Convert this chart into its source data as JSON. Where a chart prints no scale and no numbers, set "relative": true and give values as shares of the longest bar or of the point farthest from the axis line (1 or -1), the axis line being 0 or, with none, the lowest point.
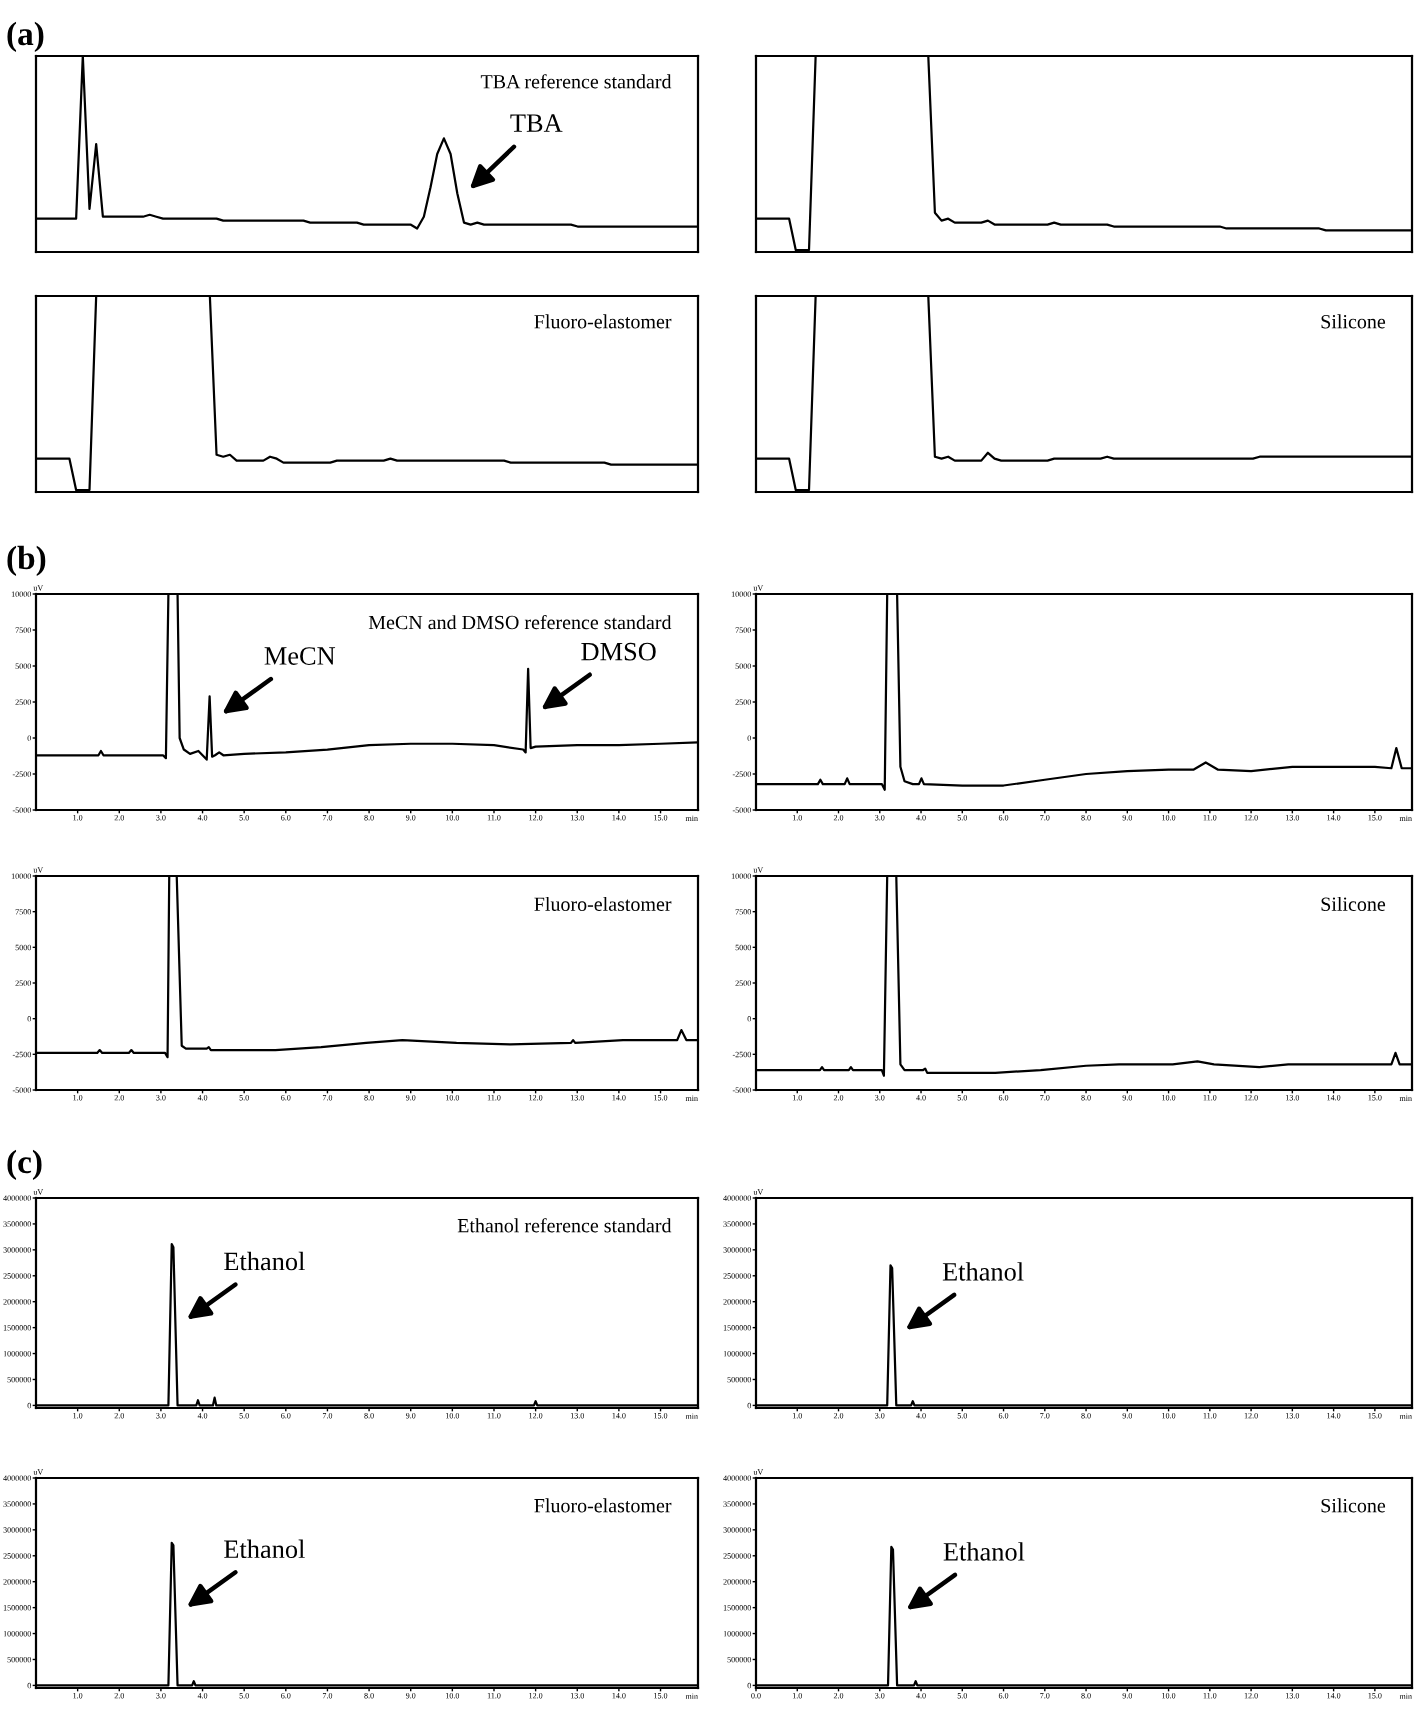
{
  "chart_data": [
    {
      "type": "line",
      "title": "(a)",
      "subtitle": "TBA reference standard",
      "relative": true,
      "categories": [
        null,
        null,
        null,
        null,
        null,
        null,
        null,
        null,
        null,
        null,
        null,
        null,
        null,
        null,
        null,
        null,
        null,
        null,
        null,
        null,
        null,
        null,
        null,
        null,
        null,
        null,
        null,
        null,
        null,
        null,
        null,
        null,
        null,
        null,
        null,
        null,
        null,
        null,
        null,
        null,
        null,
        null,
        null,
        null,
        null,
        null,
        null,
        null,
        null,
        null,
        null,
        null,
        null,
        null,
        null,
        null,
        null,
        null,
        null,
        null,
        null,
        null,
        null,
        null,
        null,
        null,
        null,
        null,
        null,
        null,
        null,
        null,
        null,
        null,
        null,
        null,
        null,
        null,
        null,
        null,
        null,
        null,
        null,
        null,
        null,
        null,
        null,
        null,
        null,
        null,
        null,
        null,
        null,
        null,
        null,
        null,
        null,
        null,
        null,
        null
      ],
      "series": [
        {
          "color": "#000000",
          "values": [
            0.17,
            0.17,
            0.17,
            0.17,
            0.17,
            0.17,
            0.17,
            1.0,
            0.22,
            0.55,
            0.18,
            0.18,
            0.18,
            0.18,
            0.18,
            0.18,
            0.18,
            0.19,
            0.18,
            0.17,
            0.17,
            0.17,
            0.17,
            0.17,
            0.17,
            0.17,
            0.17,
            0.17,
            0.16,
            0.16,
            0.16,
            0.16,
            0.16,
            0.16,
            0.16,
            0.16,
            0.16,
            0.16,
            0.16,
            0.16,
            0.16,
            0.15,
            0.15,
            0.15,
            0.15,
            0.15,
            0.15,
            0.15,
            0.15,
            0.14,
            0.14,
            0.14,
            0.14,
            0.14,
            0.14,
            0.14,
            0.14,
            0.12,
            0.18,
            0.33,
            0.5,
            0.58,
            0.5,
            0.3,
            0.15,
            0.14,
            0.15,
            0.14,
            0.14,
            0.14,
            0.14,
            0.14,
            0.14,
            0.14,
            0.14,
            0.14,
            0.14,
            0.14,
            0.14,
            0.14,
            0.14,
            0.13,
            0.13,
            0.13,
            0.13,
            0.13,
            0.13,
            0.13,
            0.13,
            0.13,
            0.13,
            0.13,
            0.13,
            0.13,
            0.13,
            0.13,
            0.13,
            0.13,
            0.13,
            0.13
          ]
        }
      ],
      "annotations": [
        "TBA"
      ]
    },
    {
      "type": "line",
      "relative": true,
      "categories": [
        null,
        null,
        null,
        null,
        null,
        null,
        null,
        null,
        null,
        null,
        null,
        null,
        null,
        null,
        null,
        null,
        null,
        null,
        null,
        null,
        null,
        null,
        null,
        null,
        null,
        null,
        null,
        null,
        null,
        null,
        null,
        null,
        null,
        null,
        null,
        null,
        null,
        null,
        null,
        null,
        null,
        null,
        null,
        null,
        null,
        null,
        null,
        null,
        null,
        null,
        null,
        null,
        null,
        null,
        null,
        null,
        null,
        null,
        null,
        null,
        null,
        null,
        null,
        null,
        null,
        null,
        null,
        null,
        null,
        null,
        null,
        null,
        null,
        null,
        null,
        null,
        null,
        null,
        null,
        null,
        null,
        null,
        null,
        null,
        null,
        null,
        null,
        null,
        null,
        null,
        null,
        null,
        null,
        null,
        null,
        null,
        null,
        null,
        null,
        null
      ],
      "series": [
        {
          "color": "#000000",
          "values": [
            0.17,
            0.17,
            0.17,
            0.17,
            0.17,
            0.17,
            0.01,
            0.01,
            0.01,
            1.0,
            1.0,
            1.0,
            1.0,
            1.0,
            1.0,
            1.0,
            1.0,
            1.0,
            1.0,
            1.0,
            1.0,
            1.0,
            1.0,
            1.0,
            1.0,
            1.0,
            1.0,
            0.2,
            0.16,
            0.17,
            0.15,
            0.15,
            0.15,
            0.15,
            0.15,
            0.16,
            0.14,
            0.14,
            0.14,
            0.14,
            0.14,
            0.14,
            0.14,
            0.14,
            0.14,
            0.15,
            0.14,
            0.14,
            0.14,
            0.14,
            0.14,
            0.14,
            0.14,
            0.14,
            0.13,
            0.13,
            0.13,
            0.13,
            0.13,
            0.13,
            0.13,
            0.13,
            0.13,
            0.13,
            0.13,
            0.13,
            0.13,
            0.13,
            0.13,
            0.13,
            0.13,
            0.12,
            0.12,
            0.12,
            0.12,
            0.12,
            0.12,
            0.12,
            0.12,
            0.12,
            0.12,
            0.12,
            0.12,
            0.12,
            0.12,
            0.12,
            0.11,
            0.11,
            0.11,
            0.11,
            0.11,
            0.11,
            0.11,
            0.11,
            0.11,
            0.11,
            0.11,
            0.11,
            0.11,
            0.11
          ]
        }
      ]
    },
    {
      "type": "line",
      "subtitle": "Fluoro-elastomer",
      "relative": true,
      "categories": [
        null,
        null,
        null,
        null,
        null,
        null,
        null,
        null,
        null,
        null,
        null,
        null,
        null,
        null,
        null,
        null,
        null,
        null,
        null,
        null,
        null,
        null,
        null,
        null,
        null,
        null,
        null,
        null,
        null,
        null,
        null,
        null,
        null,
        null,
        null,
        null,
        null,
        null,
        null,
        null,
        null,
        null,
        null,
        null,
        null,
        null,
        null,
        null,
        null,
        null,
        null,
        null,
        null,
        null,
        null,
        null,
        null,
        null,
        null,
        null,
        null,
        null,
        null,
        null,
        null,
        null,
        null,
        null,
        null,
        null,
        null,
        null,
        null,
        null,
        null,
        null,
        null,
        null,
        null,
        null,
        null,
        null,
        null,
        null,
        null,
        null,
        null,
        null,
        null,
        null,
        null,
        null,
        null,
        null,
        null,
        null,
        null,
        null,
        null,
        null
      ],
      "series": [
        {
          "color": "#000000",
          "values": [
            0.17,
            0.17,
            0.17,
            0.17,
            0.17,
            0.17,
            0.01,
            0.01,
            0.01,
            1.0,
            1.0,
            1.0,
            1.0,
            1.0,
            1.0,
            1.0,
            1.0,
            1.0,
            1.0,
            1.0,
            1.0,
            1.0,
            1.0,
            1.0,
            1.0,
            1.0,
            1.0,
            0.19,
            0.18,
            0.19,
            0.16,
            0.16,
            0.16,
            0.16,
            0.16,
            0.18,
            0.17,
            0.15,
            0.15,
            0.15,
            0.15,
            0.15,
            0.15,
            0.15,
            0.15,
            0.16,
            0.16,
            0.16,
            0.16,
            0.16,
            0.16,
            0.16,
            0.16,
            0.17,
            0.16,
            0.16,
            0.16,
            0.16,
            0.16,
            0.16,
            0.16,
            0.16,
            0.16,
            0.16,
            0.16,
            0.16,
            0.16,
            0.16,
            0.16,
            0.16,
            0.16,
            0.15,
            0.15,
            0.15,
            0.15,
            0.15,
            0.15,
            0.15,
            0.15,
            0.15,
            0.15,
            0.15,
            0.15,
            0.15,
            0.15,
            0.15,
            0.14,
            0.14,
            0.14,
            0.14,
            0.14,
            0.14,
            0.14,
            0.14,
            0.14,
            0.14,
            0.14,
            0.14,
            0.14,
            0.14
          ]
        }
      ]
    },
    {
      "type": "line",
      "subtitle": "Silicone",
      "relative": true,
      "categories": [
        null,
        null,
        null,
        null,
        null,
        null,
        null,
        null,
        null,
        null,
        null,
        null,
        null,
        null,
        null,
        null,
        null,
        null,
        null,
        null,
        null,
        null,
        null,
        null,
        null,
        null,
        null,
        null,
        null,
        null,
        null,
        null,
        null,
        null,
        null,
        null,
        null,
        null,
        null,
        null,
        null,
        null,
        null,
        null,
        null,
        null,
        null,
        null,
        null,
        null,
        null,
        null,
        null,
        null,
        null,
        null,
        null,
        null,
        null,
        null,
        null,
        null,
        null,
        null,
        null,
        null,
        null,
        null,
        null,
        null,
        null,
        null,
        null,
        null,
        null,
        null,
        null,
        null,
        null,
        null,
        null,
        null,
        null,
        null,
        null,
        null,
        null,
        null,
        null,
        null,
        null,
        null,
        null,
        null,
        null,
        null,
        null,
        null,
        null,
        null
      ],
      "series": [
        {
          "color": "#000000",
          "values": [
            0.17,
            0.17,
            0.17,
            0.17,
            0.17,
            0.17,
            0.01,
            0.01,
            0.01,
            1.0,
            1.0,
            1.0,
            1.0,
            1.0,
            1.0,
            1.0,
            1.0,
            1.0,
            1.0,
            1.0,
            1.0,
            1.0,
            1.0,
            1.0,
            1.0,
            1.0,
            1.0,
            0.18,
            0.17,
            0.18,
            0.16,
            0.16,
            0.16,
            0.16,
            0.16,
            0.2,
            0.17,
            0.16,
            0.16,
            0.16,
            0.16,
            0.16,
            0.16,
            0.16,
            0.16,
            0.17,
            0.17,
            0.17,
            0.17,
            0.17,
            0.17,
            0.17,
            0.17,
            0.18,
            0.17,
            0.17,
            0.17,
            0.17,
            0.17,
            0.17,
            0.17,
            0.17,
            0.17,
            0.17,
            0.17,
            0.17,
            0.17,
            0.17,
            0.17,
            0.17,
            0.17,
            0.17,
            0.17,
            0.17,
            0.17,
            0.17,
            0.18,
            0.18,
            0.18,
            0.18,
            0.18,
            0.18,
            0.18,
            0.18,
            0.18,
            0.18,
            0.18,
            0.18,
            0.18,
            0.18,
            0.18,
            0.18,
            0.18,
            0.18,
            0.18,
            0.18,
            0.18,
            0.18,
            0.18,
            0.18
          ]
        }
      ]
    },
    {
      "type": "line",
      "title": "(b)",
      "subtitle": "MeCN and DMSO reference standard",
      "xlabel": "min",
      "ylabel": "uV",
      "xlim": [
        0,
        15.9
      ],
      "xticks": [
        {
          "value": 1,
          "label": "1.0"
        },
        {
          "value": 2,
          "label": "2.0"
        },
        {
          "value": 3,
          "label": "3.0"
        },
        {
          "value": 4,
          "label": "4.0"
        },
        {
          "value": 5,
          "label": "5.0"
        },
        {
          "value": 6,
          "label": "6.0"
        },
        {
          "value": 7,
          "label": "7.0"
        },
        {
          "value": 8,
          "label": "8.0"
        },
        {
          "value": 9,
          "label": "9.0"
        },
        {
          "value": 10,
          "label": "10.0"
        },
        {
          "value": 11,
          "label": "11.0"
        },
        {
          "value": 12,
          "label": "12.0"
        },
        {
          "value": 13,
          "label": "13.0"
        },
        {
          "value": 14,
          "label": "14.0"
        },
        {
          "value": 15,
          "label": "15.0"
        }
      ],
      "ylim": [
        -5000,
        10000
      ],
      "yticks": [
        -5000,
        -2500,
        0,
        2500,
        5000,
        7500,
        10000
      ],
      "series": [
        {
          "color": "#000000",
          "x": [
            0,
            1.5,
            1.56,
            1.62,
            3.05,
            3.12,
            3.18,
            3.3,
            3.4,
            3.45,
            3.55,
            3.7,
            3.9,
            4.0,
            4.1,
            4.17,
            4.23,
            4.3,
            4.4,
            4.5,
            5.0,
            6.0,
            7.0,
            8.0,
            9.0,
            10.0,
            11.0,
            11.7,
            11.76,
            11.82,
            11.88,
            12.0,
            13.0,
            14.0,
            15.0,
            15.9
          ],
          "values": [
            -1200,
            -1200,
            -900,
            -1200,
            -1200,
            -1400,
            10000,
            10000,
            10000,
            0,
            -800,
            -1100,
            -900,
            -1200,
            -1500,
            2900,
            -1300,
            -1200,
            -1000,
            -1200,
            -1100,
            -1000,
            -800,
            -500,
            -400,
            -400,
            -500,
            -800,
            -1000,
            4800,
            -700,
            -600,
            -500,
            -500,
            -400,
            -300
          ]
        }
      ],
      "annotations": [
        {
          "text": "MeCN",
          "x": 4.2,
          "y": 1100
        },
        {
          "text": "DMSO",
          "x": 11.86,
          "y": 1400
        }
      ]
    },
    {
      "type": "line",
      "xlabel": "min",
      "ylabel": "uV",
      "xlim": [
        0,
        15.9
      ],
      "xticks": [
        {
          "value": 1,
          "label": "1.0"
        },
        {
          "value": 2,
          "label": "2.0"
        },
        {
          "value": 3,
          "label": "3.0"
        },
        {
          "value": 4,
          "label": "4.0"
        },
        {
          "value": 5,
          "label": "5.0"
        },
        {
          "value": 6,
          "label": "6.0"
        },
        {
          "value": 7,
          "label": "7.0"
        },
        {
          "value": 8,
          "label": "8.0"
        },
        {
          "value": 9,
          "label": "9.0"
        },
        {
          "value": 10,
          "label": "10.0"
        },
        {
          "value": 11,
          "label": "11.0"
        },
        {
          "value": 12,
          "label": "12.0"
        },
        {
          "value": 13,
          "label": "13.0"
        },
        {
          "value": 14,
          "label": "14.0"
        },
        {
          "value": 15,
          "label": "15.0"
        }
      ],
      "ylim": [
        -5000,
        10000
      ],
      "yticks": [
        -5000,
        -2500,
        0,
        2500,
        5000,
        7500,
        10000
      ],
      "series": [
        {
          "color": "#000000",
          "x": [
            0,
            1.5,
            1.56,
            1.62,
            2.15,
            2.21,
            2.27,
            3.05,
            3.12,
            3.18,
            3.3,
            3.42,
            3.5,
            3.6,
            3.8,
            3.95,
            4.01,
            4.07,
            5,
            6,
            7,
            8,
            9,
            10,
            10.6,
            10.9,
            11.2,
            12,
            13,
            14,
            15,
            15.4,
            15.52,
            15.65,
            15.9
          ],
          "values": [
            -3200,
            -3200,
            -2900,
            -3200,
            -3200,
            -2800,
            -3200,
            -3200,
            -3600,
            10000,
            10000,
            10000,
            -2000,
            -3000,
            -3200,
            -3200,
            -2800,
            -3200,
            -3300,
            -3300,
            -2900,
            -2500,
            -2300,
            -2200,
            -2200,
            -1700,
            -2200,
            -2300,
            -2000,
            -2000,
            -2000,
            -2100,
            -700,
            -2100,
            -2100
          ]
        }
      ]
    },
    {
      "type": "line",
      "subtitle": "Fluoro-elastomer",
      "xlabel": "min",
      "ylabel": "uV",
      "xlim": [
        0,
        15.9
      ],
      "xticks": [
        {
          "value": 1,
          "label": "1.0"
        },
        {
          "value": 2,
          "label": "2.0"
        },
        {
          "value": 3,
          "label": "3.0"
        },
        {
          "value": 4,
          "label": "4.0"
        },
        {
          "value": 5,
          "label": "5.0"
        },
        {
          "value": 6,
          "label": "6.0"
        },
        {
          "value": 7,
          "label": "7.0"
        },
        {
          "value": 8,
          "label": "8.0"
        },
        {
          "value": 9,
          "label": "9.0"
        },
        {
          "value": 10,
          "label": "10.0"
        },
        {
          "value": 11,
          "label": "11.0"
        },
        {
          "value": 12,
          "label": "12.0"
        },
        {
          "value": 13,
          "label": "13.0"
        },
        {
          "value": 14,
          "label": "14.0"
        },
        {
          "value": 15,
          "label": "15.0"
        }
      ],
      "ylim": [
        -5000,
        10000
      ],
      "yticks": [
        -5000,
        -2500,
        0,
        2500,
        5000,
        7500,
        10000
      ],
      "series": [
        {
          "color": "#000000",
          "x": [
            0,
            1.47,
            1.53,
            1.59,
            2.23,
            2.29,
            2.35,
            3.1,
            3.16,
            3.2,
            3.3,
            3.38,
            3.5,
            3.6,
            4.1,
            4.15,
            4.2,
            4.65,
            5.75,
            6.85,
            7.93,
            8.8,
            10.1,
            11.4,
            12.85,
            12.9,
            12.95,
            14.1,
            14.9,
            15.4,
            15.5,
            15.62,
            15.9
          ],
          "values": [
            -2400,
            -2400,
            -2200,
            -2400,
            -2400,
            -2200,
            -2400,
            -2400,
            -2700,
            10000,
            10000,
            10000,
            -1900,
            -2100,
            -2100,
            -2000,
            -2200,
            -2200,
            -2200,
            -2000,
            -1700,
            -1500,
            -1700,
            -1800,
            -1700,
            -1500,
            -1700,
            -1500,
            -1500,
            -1500,
            -800,
            -1500,
            -1500
          ]
        }
      ]
    },
    {
      "type": "line",
      "subtitle": "Silicone",
      "xlabel": "min",
      "ylabel": "uV",
      "xlim": [
        0,
        15.9
      ],
      "xticks": [
        {
          "value": 1,
          "label": "1.0"
        },
        {
          "value": 2,
          "label": "2.0"
        },
        {
          "value": 3,
          "label": "3.0"
        },
        {
          "value": 4,
          "label": "4.0"
        },
        {
          "value": 5,
          "label": "5.0"
        },
        {
          "value": 6,
          "label": "6.0"
        },
        {
          "value": 7,
          "label": "7.0"
        },
        {
          "value": 8,
          "label": "8.0"
        },
        {
          "value": 9,
          "label": "9.0"
        },
        {
          "value": 10,
          "label": "10.0"
        },
        {
          "value": 11,
          "label": "11.0"
        },
        {
          "value": 12,
          "label": "12.0"
        },
        {
          "value": 13,
          "label": "13.0"
        },
        {
          "value": 14,
          "label": "14.0"
        },
        {
          "value": 15,
          "label": "15.0"
        }
      ],
      "ylim": [
        -5000,
        10000
      ],
      "yticks": [
        -5000,
        -2500,
        0,
        2500,
        5000,
        7500,
        10000
      ],
      "series": [
        {
          "color": "#000000",
          "x": [
            0,
            1.55,
            1.6,
            1.65,
            2.25,
            2.3,
            2.35,
            3.05,
            3.1,
            3.18,
            3.3,
            3.4,
            3.5,
            3.6,
            4.05,
            4.1,
            4.15,
            4.7,
            5.8,
            6.9,
            8.0,
            8.8,
            10.1,
            10.7,
            11.1,
            12.2,
            12.9,
            14.4,
            15.2,
            15.4,
            15.5,
            15.6,
            15.9
          ],
          "values": [
            -3600,
            -3600,
            -3400,
            -3600,
            -3600,
            -3400,
            -3600,
            -3600,
            -4000,
            10000,
            10000,
            10000,
            -3200,
            -3600,
            -3600,
            -3500,
            -3800,
            -3800,
            -3800,
            -3600,
            -3300,
            -3200,
            -3200,
            -3000,
            -3200,
            -3400,
            -3200,
            -3200,
            -3200,
            -3200,
            -2400,
            -3200,
            -3200
          ]
        }
      ]
    },
    {
      "type": "line",
      "title": "(c)",
      "subtitle": "Ethanol reference standard",
      "xlabel": "min",
      "ylabel": "uV",
      "xlim": [
        0,
        15.9
      ],
      "xticks": [
        {
          "value": 1,
          "label": "1.0"
        },
        {
          "value": 2,
          "label": "2.0"
        },
        {
          "value": 3,
          "label": "3.0"
        },
        {
          "value": 4,
          "label": "4.0"
        },
        {
          "value": 5,
          "label": "5.0"
        },
        {
          "value": 6,
          "label": "6.0"
        },
        {
          "value": 7,
          "label": "7.0"
        },
        {
          "value": 8,
          "label": "8.0"
        },
        {
          "value": 9,
          "label": "9.0"
        },
        {
          "value": 10,
          "label": "10.0"
        },
        {
          "value": 11,
          "label": "11.0"
        },
        {
          "value": 12,
          "label": "12.0"
        },
        {
          "value": 13,
          "label": "13.0"
        },
        {
          "value": 14,
          "label": "14.0"
        },
        {
          "value": 15,
          "label": "15.0"
        }
      ],
      "ylim": [
        -50000,
        4000000
      ],
      "yticks": [
        0,
        500000,
        1000000,
        1500000,
        2000000,
        2500000,
        3000000,
        3500000,
        4000000
      ],
      "series": [
        {
          "color": "#000000",
          "x": [
            0,
            3.18,
            3.26,
            3.3,
            3.4,
            3.85,
            3.89,
            3.93,
            4.25,
            4.29,
            4.33,
            11.96,
            12.0,
            12.04,
            15.9
          ],
          "values": [
            0,
            0,
            3110000,
            3050000,
            0,
            0,
            100000,
            0,
            0,
            150000,
            0,
            0,
            80000,
            0,
            0
          ]
        }
      ],
      "annotations": [
        {
          "text": "Ethanol",
          "x": 3.35,
          "y": 1500000
        }
      ]
    },
    {
      "type": "line",
      "xlabel": "min",
      "ylabel": "uV",
      "xlim": [
        0,
        15.9
      ],
      "xticks": [
        {
          "value": 1,
          "label": "1.0"
        },
        {
          "value": 2,
          "label": "2.0"
        },
        {
          "value": 3,
          "label": "3.0"
        },
        {
          "value": 4,
          "label": "4.0"
        },
        {
          "value": 5,
          "label": "5.0"
        },
        {
          "value": 6,
          "label": "6.0"
        },
        {
          "value": 7,
          "label": "7.0"
        },
        {
          "value": 8,
          "label": "8.0"
        },
        {
          "value": 9,
          "label": "9.0"
        },
        {
          "value": 10,
          "label": "10.0"
        },
        {
          "value": 11,
          "label": "11.0"
        },
        {
          "value": 12,
          "label": "12.0"
        },
        {
          "value": 13,
          "label": "13.0"
        },
        {
          "value": 14,
          "label": "14.0"
        },
        {
          "value": 15,
          "label": "15.0"
        }
      ],
      "ylim": [
        -50000,
        4000000
      ],
      "yticks": [
        0,
        500000,
        1000000,
        1500000,
        2000000,
        2500000,
        3000000,
        3500000,
        4000000
      ],
      "series": [
        {
          "color": "#000000",
          "x": [
            0,
            3.18,
            3.26,
            3.3,
            3.4,
            3.76,
            3.8,
            3.84,
            15.9
          ],
          "values": [
            0,
            0,
            2700000,
            2650000,
            0,
            0,
            80000,
            0,
            0
          ]
        }
      ],
      "annotations": [
        {
          "text": "Ethanol",
          "x": 3.35,
          "y": 1300000
        }
      ]
    },
    {
      "type": "line",
      "subtitle": "Fluoro-elastomer",
      "xlabel": "min",
      "ylabel": "uV",
      "xlim": [
        0,
        15.9
      ],
      "xticks": [
        {
          "value": 1,
          "label": "1.0"
        },
        {
          "value": 2,
          "label": "2.0"
        },
        {
          "value": 3,
          "label": "3.0"
        },
        {
          "value": 4,
          "label": "4.0"
        },
        {
          "value": 5,
          "label": "5.0"
        },
        {
          "value": 6,
          "label": "6.0"
        },
        {
          "value": 7,
          "label": "7.0"
        },
        {
          "value": 8,
          "label": "8.0"
        },
        {
          "value": 9,
          "label": "9.0"
        },
        {
          "value": 10,
          "label": "10.0"
        },
        {
          "value": 11,
          "label": "11.0"
        },
        {
          "value": 12,
          "label": "12.0"
        },
        {
          "value": 13,
          "label": "13.0"
        },
        {
          "value": 14,
          "label": "14.0"
        },
        {
          "value": 15,
          "label": "15.0"
        }
      ],
      "ylim": [
        -50000,
        4000000
      ],
      "yticks": [
        0,
        500000,
        1000000,
        1500000,
        2000000,
        2500000,
        3000000,
        3500000,
        4000000
      ],
      "series": [
        {
          "color": "#000000",
          "x": [
            0,
            3.18,
            3.26,
            3.3,
            3.4,
            3.75,
            3.79,
            3.83,
            15.9
          ],
          "values": [
            0,
            0,
            2750000,
            2700000,
            0,
            0,
            80000,
            0,
            0
          ]
        }
      ],
      "annotations": [
        {
          "text": "Ethanol",
          "x": 3.35,
          "y": 1350000
        }
      ]
    },
    {
      "type": "line",
      "subtitle": "Silicone",
      "xlabel": "min",
      "ylabel": "uV",
      "xlim": [
        0,
        15.9
      ],
      "xticks": [
        {
          "value": 0,
          "label": "0.0"
        },
        {
          "value": 1,
          "label": "1.0"
        },
        {
          "value": 2,
          "label": "2.0"
        },
        {
          "value": 3,
          "label": "3.0"
        },
        {
          "value": 4,
          "label": "4.0"
        },
        {
          "value": 5,
          "label": "5.0"
        },
        {
          "value": 6,
          "label": "6.0"
        },
        {
          "value": 7,
          "label": "7.0"
        },
        {
          "value": 8,
          "label": "8.0"
        },
        {
          "value": 9,
          "label": "9.0"
        },
        {
          "value": 10,
          "label": "10.0"
        },
        {
          "value": 11,
          "label": "11.0"
        },
        {
          "value": 12,
          "label": "12.0"
        },
        {
          "value": 13,
          "label": "13.0"
        },
        {
          "value": 14,
          "label": "14.0"
        },
        {
          "value": 15,
          "label": "15.0"
        }
      ],
      "ylim": [
        -50000,
        4000000
      ],
      "yticks": [
        0,
        500000,
        1000000,
        1500000,
        2000000,
        2500000,
        3000000,
        3500000,
        4000000
      ],
      "series": [
        {
          "color": "#000000",
          "x": [
            0,
            3.2,
            3.28,
            3.32,
            3.42,
            3.83,
            3.87,
            3.91,
            15.9
          ],
          "values": [
            0,
            0,
            2670000,
            2620000,
            0,
            0,
            80000,
            0,
            0
          ]
        }
      ],
      "annotations": [
        {
          "text": "Ethanol",
          "x": 3.37,
          "y": 1300000
        }
      ]
    }
  ]
}
